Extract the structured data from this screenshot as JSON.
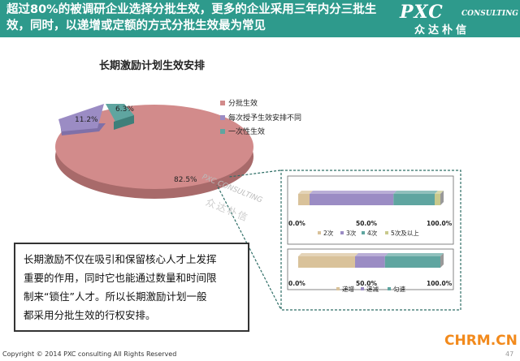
{
  "header": {
    "headline": "超过80%的被调研企业选择分批生效，更多的企业采用三年内分三批生效，同时，以递增或定额的方式分批生效最为常见",
    "logo_main": "PXC",
    "logo_sub": "CONSULTING",
    "logo_cn": "众达朴信",
    "bg_color": "#2e9a8c"
  },
  "pie_title": "长期激励计划生效安排",
  "chart_data": [
    {
      "type": "pie",
      "title": "长期激励计划生效安排",
      "labels": [
        "分批生效",
        "每次授予生效安排不同",
        "一次性生效"
      ],
      "values": [
        82.5,
        11.2,
        6.3
      ],
      "value_labels": [
        "82.5%",
        "11.2%",
        "6.3%"
      ],
      "colors": [
        "#d28b8b",
        "#9b8cc4",
        "#5fa5a0"
      ],
      "legend_position": "right"
    },
    {
      "type": "bar",
      "stacked": true,
      "orientation": "horizontal",
      "series": [
        {
          "name": "2次",
          "values": [
            8
          ],
          "color": "#d9c29a"
        },
        {
          "name": "3次",
          "values": [
            59
          ],
          "color": "#9b8cc4"
        },
        {
          "name": "4次",
          "values": [
            29
          ],
          "color": "#5fa5a0"
        },
        {
          "name": "5次及以上",
          "values": [
            4
          ],
          "color": "#c8c98c"
        }
      ],
      "xticks": [
        "0.0%",
        "50.0%",
        "100.0%"
      ],
      "xlim": [
        0,
        100
      ]
    },
    {
      "type": "bar",
      "stacked": true,
      "orientation": "horizontal",
      "series": [
        {
          "name": "递增",
          "values": [
            40
          ],
          "color": "#d9c29a"
        },
        {
          "name": "递减",
          "values": [
            21
          ],
          "color": "#9b8cc4"
        },
        {
          "name": "匀速",
          "values": [
            39
          ],
          "color": "#5fa5a0"
        }
      ],
      "xticks": [
        "0.0%",
        "50.0%",
        "100.0%"
      ],
      "xlim": [
        0,
        100
      ]
    }
  ],
  "note": {
    "line1": "长期激励不仅在吸引和保留核心人才上发挥",
    "line2": "重要的作用，同时它也能通过数量和时间限",
    "line3": "制来“锁住”人才。所以长期激励计划一般",
    "line4": "都采用分批生效的行权安排。"
  },
  "watermark": {
    "latin": "PXC CONSULTING",
    "cn": "众达朴信"
  },
  "footer": {
    "copyright": "Copyright © 2014 PXC consulting All Rights Reserved",
    "page": "47",
    "badge": "CHRM.CN"
  }
}
